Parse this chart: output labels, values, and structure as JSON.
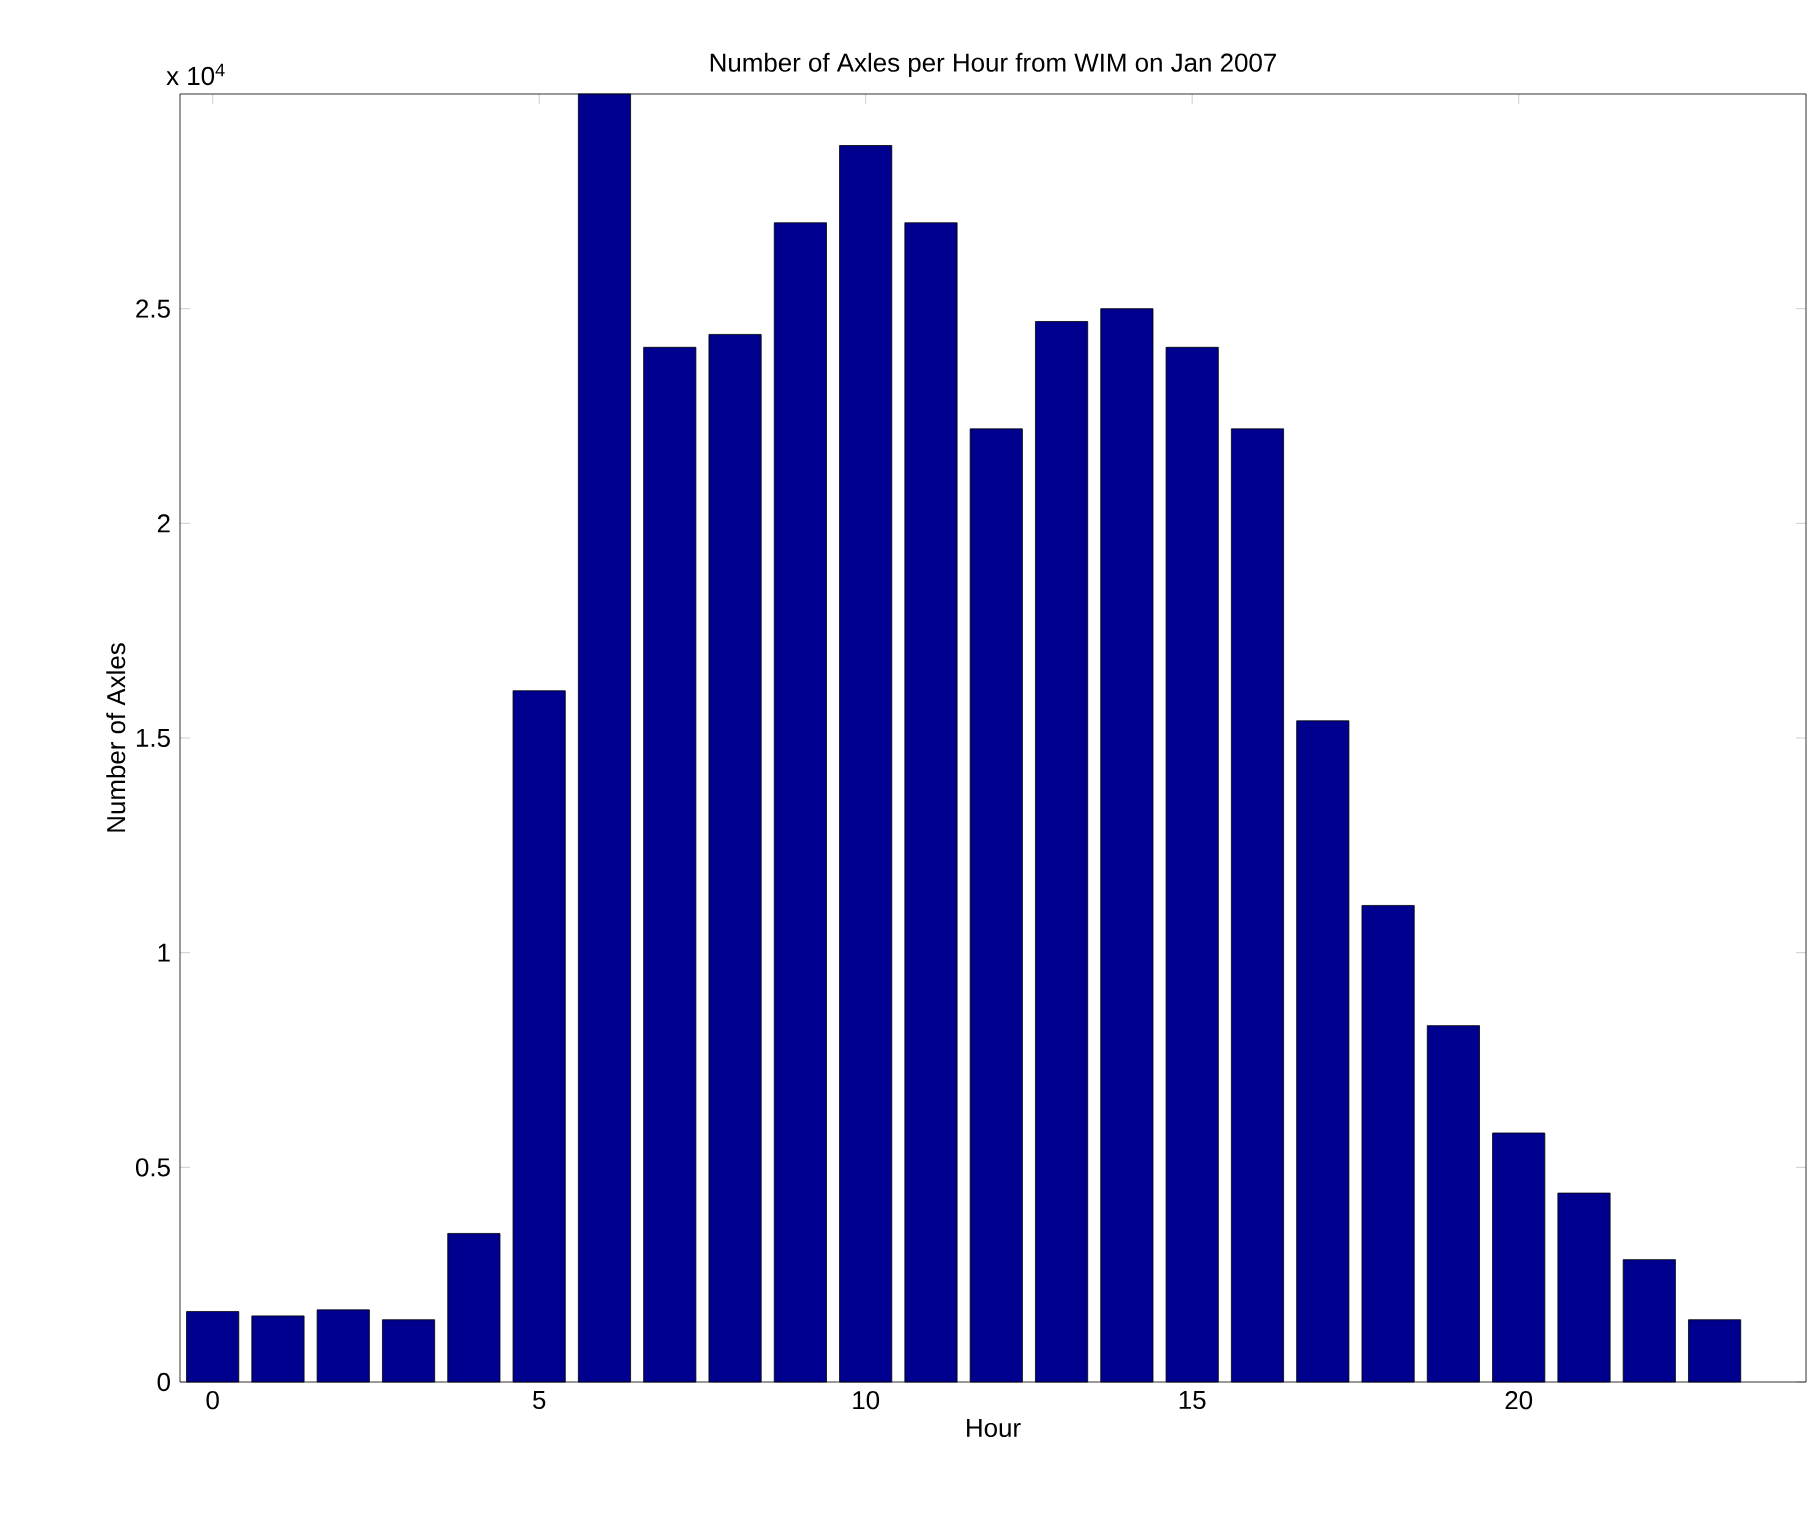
{
  "chart_data": {
    "type": "bar",
    "title": "Number of Axles per Hour from WIM on  Jan 2007",
    "xlabel": "Hour",
    "ylabel": "Number of Axles",
    "annotations": [
      "x 10$^{4}$"
    ],
    "x": [
      0,
      1,
      2,
      3,
      4,
      5,
      6,
      7,
      8,
      9,
      10,
      11,
      12,
      13,
      14,
      15,
      16,
      17,
      18,
      19,
      20,
      21,
      22,
      23
    ],
    "values": [
      0.164,
      0.154,
      0.168,
      0.145,
      0.346,
      1.61,
      3,
      2.41,
      2.44,
      2.7,
      2.88,
      2.7,
      2.22,
      2.47,
      2.5,
      2.41,
      2.22,
      1.54,
      1.11,
      0.83,
      0.58,
      0.44,
      0.285,
      0.145
    ],
    "color": "#00008f",
    "xlim": [
      -0.5,
      24.4
    ],
    "ylim": [
      0,
      3
    ],
    "xticks": [
      0,
      5,
      10,
      15,
      20
    ],
    "yticks": [
      0,
      0.5,
      1,
      1.5,
      2,
      2.5
    ]
  }
}
